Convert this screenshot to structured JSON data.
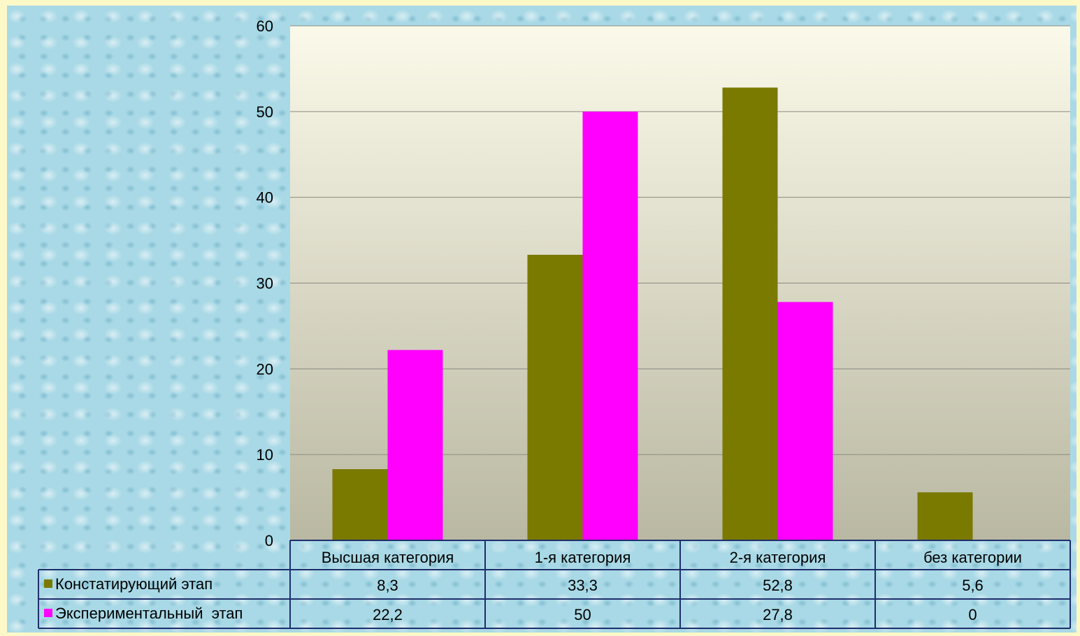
{
  "chart_data": {
    "type": "bar",
    "categories": [
      "Высшая категория",
      "1-я категория",
      "2-я категория",
      "без категории"
    ],
    "series": [
      {
        "name": "Констатирующий этап",
        "color": "#7a7a00",
        "values": [
          8.3,
          33.3,
          52.8,
          5.6
        ],
        "labels": [
          "8,3",
          "33,3",
          "52,8",
          "5,6"
        ]
      },
      {
        "name": "Экспериментальный  этап",
        "color": "#ff00ff",
        "values": [
          22.2,
          50,
          27.8,
          0
        ],
        "labels": [
          "22,2",
          "50",
          "27,8",
          "0"
        ]
      }
    ],
    "ylim": [
      0,
      60
    ],
    "yticks": [
      0,
      10,
      20,
      30,
      40,
      50,
      60
    ],
    "grid": true,
    "legend": "data-table",
    "title": "",
    "xlabel": "",
    "ylabel": ""
  }
}
